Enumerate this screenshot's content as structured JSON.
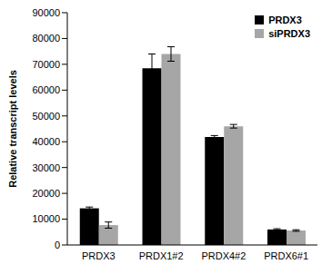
{
  "chart_data": {
    "type": "bar",
    "y_label": "Relative transcript levels",
    "categories": [
      "PRDX3",
      "PRDX1#2",
      "PRDX4#2",
      "PRDX6#1"
    ],
    "series": [
      {
        "name": "PRDX3",
        "color": "#000000",
        "values": [
          14200,
          68500,
          41800,
          6000
        ],
        "errors": [
          500,
          5500,
          600,
          300
        ]
      },
      {
        "name": "siPRDX3",
        "color": "#a6a6a6",
        "values": [
          7700,
          74000,
          46000,
          5600
        ],
        "errors": [
          1200,
          2800,
          700,
          300
        ]
      }
    ],
    "ylim": [
      0,
      90000
    ],
    "yticks": [
      0,
      10000,
      20000,
      30000,
      40000,
      50000,
      60000,
      70000,
      80000,
      90000
    ],
    "legend": "upper right",
    "grid": false
  }
}
